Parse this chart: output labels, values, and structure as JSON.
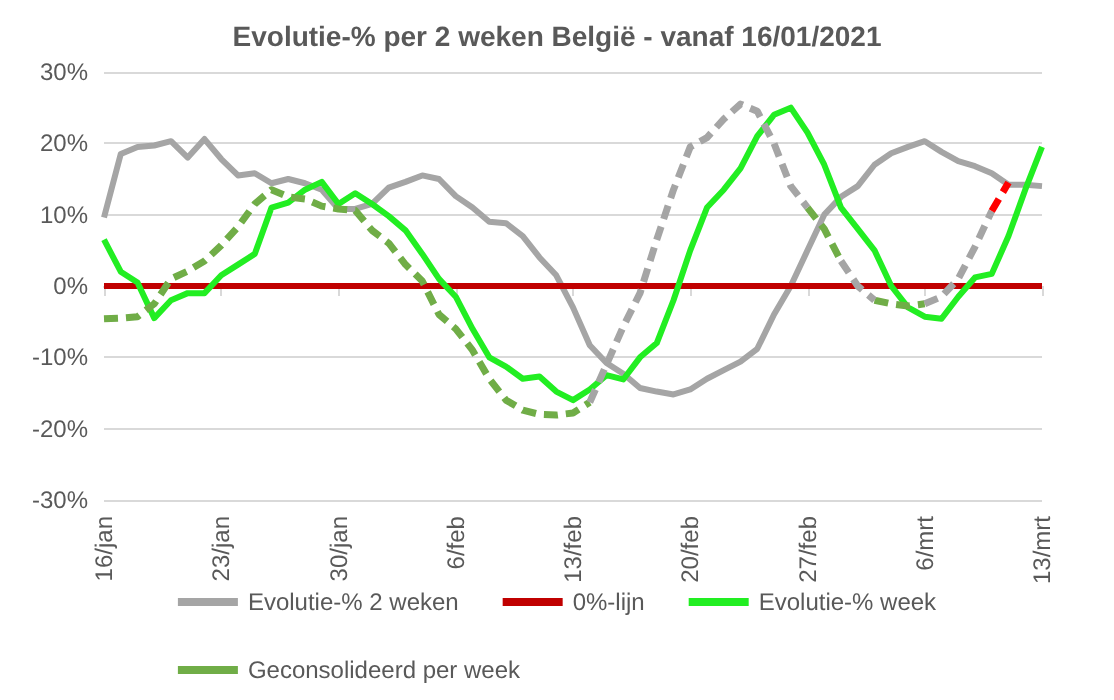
{
  "chart_data": {
    "type": "line",
    "title": "Evolutie-% per 2 weken België - vanaf 16/01/2021",
    "x": [
      "--01-16",
      "--01-17",
      "--01-18",
      "--01-19",
      "--01-20",
      "--01-21",
      "--01-22",
      "--01-23",
      "--01-24",
      "--01-25",
      "--01-26",
      "--01-27",
      "--01-28",
      "--01-29",
      "--01-30",
      "--01-31",
      "--02-01",
      "--02-02",
      "--02-03",
      "--02-04",
      "--02-05",
      "--02-06",
      "--02-07",
      "--02-08",
      "--02-09",
      "--02-10",
      "--02-11",
      "--02-12",
      "--02-13",
      "--02-14",
      "--02-15",
      "--02-16",
      "--02-17",
      "--02-18",
      "--02-19",
      "--02-20",
      "--02-21",
      "--02-22",
      "--02-23",
      "--02-24",
      "--02-25",
      "--02-26",
      "--02-27",
      "--02-28",
      "--03-01",
      "--03-02",
      "--03-03",
      "--03-04",
      "--03-05",
      "--03-06",
      "--03-07",
      "--03-08",
      "--03-09",
      "--03-10",
      "--03-11",
      "--03-12",
      "--03-13"
    ],
    "series": [
      {
        "name": "Evolutie-% 2 weken",
        "color": "#a5a5a5",
        "line_style": "solid",
        "values": [
          9.6,
          18.5,
          19.5,
          19.7,
          20.3,
          18,
          20.6,
          17.8,
          15.5,
          15.8,
          14.4,
          15,
          14.4,
          13.5,
          10.8,
          10.8,
          11.5,
          13.8,
          14.6,
          15.5,
          15,
          12.6,
          11,
          9,
          8.8,
          7,
          4,
          1.5,
          -3,
          -8.3,
          -10.8,
          -12.3,
          -14.3,
          -14.8,
          -15.2,
          -14.5,
          -13,
          -11.8,
          -10.6,
          -8.8,
          -4,
          0,
          5,
          10,
          12.5,
          14,
          17,
          18.6,
          19.5,
          20.3,
          18.8,
          17.5,
          16.8,
          15.8,
          14.2,
          14.2,
          14
        ]
      },
      {
        "name": "0%-lijn",
        "color": "#c00000",
        "line_style": "solid",
        "values": [
          0,
          0,
          0,
          0,
          0,
          0,
          0,
          0,
          0,
          0,
          0,
          0,
          0,
          0,
          0,
          0,
          0,
          0,
          0,
          0,
          0,
          0,
          0,
          0,
          0,
          0,
          0,
          0,
          0,
          0,
          0,
          0,
          0,
          0,
          0,
          0,
          0,
          0,
          0,
          0,
          0,
          0,
          0,
          0,
          0,
          0,
          0,
          0,
          0,
          0,
          0,
          0,
          0,
          0,
          0,
          0,
          0
        ]
      },
      {
        "name": "Evolutie-% week",
        "color": "#22ee22",
        "line_style": "solid",
        "values": [
          6.5,
          2,
          0.5,
          -4.5,
          -2,
          -1,
          -1,
          1.5,
          3,
          4.5,
          11,
          11.7,
          13.5,
          14.6,
          11.5,
          13,
          11.5,
          9.8,
          7.8,
          4.5,
          1,
          -1.5,
          -6,
          -10,
          -11.3,
          -13,
          -12.7,
          -14.8,
          -16,
          -14.5,
          -12.5,
          -13.1,
          -10,
          -8,
          -2,
          5,
          11,
          13.5,
          16.5,
          21,
          24,
          25,
          21.5,
          17,
          11,
          8,
          5,
          0,
          -3,
          -4.3,
          -4.6,
          -1.5,
          1.2,
          1.7,
          7,
          13.5,
          19.5
        ]
      },
      {
        "name": "Geconsolideerd per week",
        "color": "#70ad47",
        "line_style": "dashed",
        "values": [
          -4.6,
          -4.5,
          -4.3,
          -2.5,
          1,
          2.1,
          3.5,
          5.7,
          8.3,
          11.5,
          13.5,
          12.5,
          12.2,
          11.2,
          10.8,
          10.6,
          7.8,
          6,
          3,
          0.7,
          -4,
          -6,
          -9,
          -13,
          -16,
          -17.4,
          -18,
          -18.1,
          -17.8,
          -16.3,
          null,
          null,
          null,
          null,
          null,
          null,
          null,
          null,
          null,
          null,
          null,
          null,
          11,
          8,
          3.5,
          null,
          -2,
          -2.5,
          -2.8,
          -2.5,
          null,
          null,
          null,
          null,
          null,
          null,
          null
        ]
      },
      {
        "color": "#a5a5a5",
        "line_style": "dashed",
        "values": [
          null,
          null,
          null,
          null,
          null,
          null,
          null,
          null,
          null,
          null,
          null,
          null,
          null,
          null,
          null,
          null,
          null,
          null,
          null,
          null,
          null,
          null,
          null,
          null,
          null,
          null,
          null,
          null,
          null,
          -16.3,
          -11,
          -5.7,
          -1,
          6.5,
          13.5,
          19.5,
          20.8,
          23.4,
          25.5,
          24.5,
          20,
          14,
          11,
          null,
          3.5,
          0,
          -2,
          null,
          null,
          -2.5,
          -1.5,
          1,
          5.5,
          10.5,
          null,
          null,
          null
        ]
      },
      {
        "color": "#ff0000",
        "line_style": "dashed",
        "values": [
          null,
          null,
          null,
          null,
          null,
          null,
          null,
          null,
          null,
          null,
          null,
          null,
          null,
          null,
          null,
          null,
          null,
          null,
          null,
          null,
          null,
          null,
          null,
          null,
          null,
          null,
          null,
          null,
          null,
          null,
          null,
          null,
          null,
          null,
          null,
          null,
          null,
          null,
          null,
          null,
          null,
          null,
          null,
          null,
          null,
          null,
          null,
          null,
          null,
          null,
          null,
          null,
          null,
          10.5,
          14.5,
          null,
          null
        ]
      }
    ],
    "xlim": [
      "--01-16",
      "--03-13"
    ],
    "xticks": [
      {
        "value": "--01-16",
        "label": "16/jan"
      },
      {
        "value": "--01-23",
        "label": "23/jan"
      },
      {
        "value": "--01-30",
        "label": "30/jan"
      },
      {
        "value": "--02-06",
        "label": "6/feb"
      },
      {
        "value": "--02-13",
        "label": "13/feb"
      },
      {
        "value": "--02-20",
        "label": "20/feb"
      },
      {
        "value": "--02-27",
        "label": "27/feb"
      },
      {
        "value": "--03-06",
        "label": "6/mrt"
      },
      {
        "value": "--03-13",
        "label": "13/mrt"
      }
    ],
    "ylim": [
      -30,
      30
    ],
    "yticks": [
      {
        "value": -30,
        "label": "-30%"
      },
      {
        "value": -20,
        "label": "-20%"
      },
      {
        "value": -10,
        "label": "-10%"
      },
      {
        "value": 0,
        "label": "0%"
      },
      {
        "value": 10,
        "label": "10%"
      },
      {
        "value": 20,
        "label": "20%"
      },
      {
        "value": 30,
        "label": "30%"
      }
    ],
    "grid": "y",
    "legend": "bottom",
    "marker": "none"
  }
}
